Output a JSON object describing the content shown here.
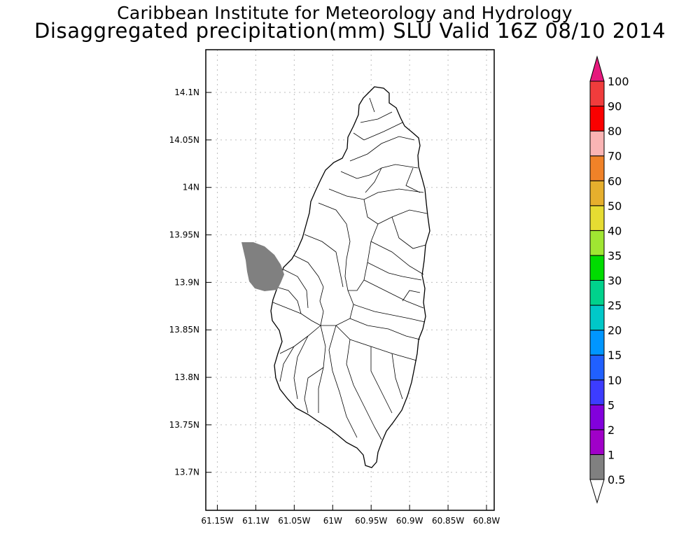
{
  "title": "Caribbean Institute for Meteorology and Hydrology",
  "subtitle": "Disaggregated precipitation(mm) SLU Valid 16Z 08/10 2014",
  "x_ticks": [
    "61.15W",
    "61.1W",
    "61.05W",
    "61W",
    "60.95W",
    "60.9W",
    "60.85W",
    "60.8W"
  ],
  "y_ticks": [
    "14.1N",
    "14.05N",
    "14N",
    "13.95N",
    "13.9N",
    "13.85N",
    "13.8N",
    "13.75N",
    "13.7N"
  ],
  "map": {
    "lon_range": [
      -61.165,
      -60.79
    ],
    "lat_range": [
      13.66,
      14.145
    ],
    "island_fill": "#ffffff",
    "precip_patch": {
      "value_class": "0.5-1",
      "color": "#808080"
    }
  },
  "colorbar": {
    "labels": [
      "0.5",
      "1",
      "2",
      "5",
      "10",
      "15",
      "20",
      "25",
      "30",
      "35",
      "40",
      "50",
      "60",
      "70",
      "80",
      "90",
      "100"
    ],
    "colors": [
      "#808080",
      "#a000c8",
      "#8200dc",
      "#3c3cff",
      "#2060ff",
      "#0096ff",
      "#00c8c8",
      "#00d28c",
      "#00dc00",
      "#a0e632",
      "#e6dc32",
      "#e6af2d",
      "#f08228",
      "#fab4b4",
      "#fa0000",
      "#f03c3c",
      "#e6196e"
    ],
    "under_color": "#ffffff",
    "over_color": "#e6197d"
  }
}
